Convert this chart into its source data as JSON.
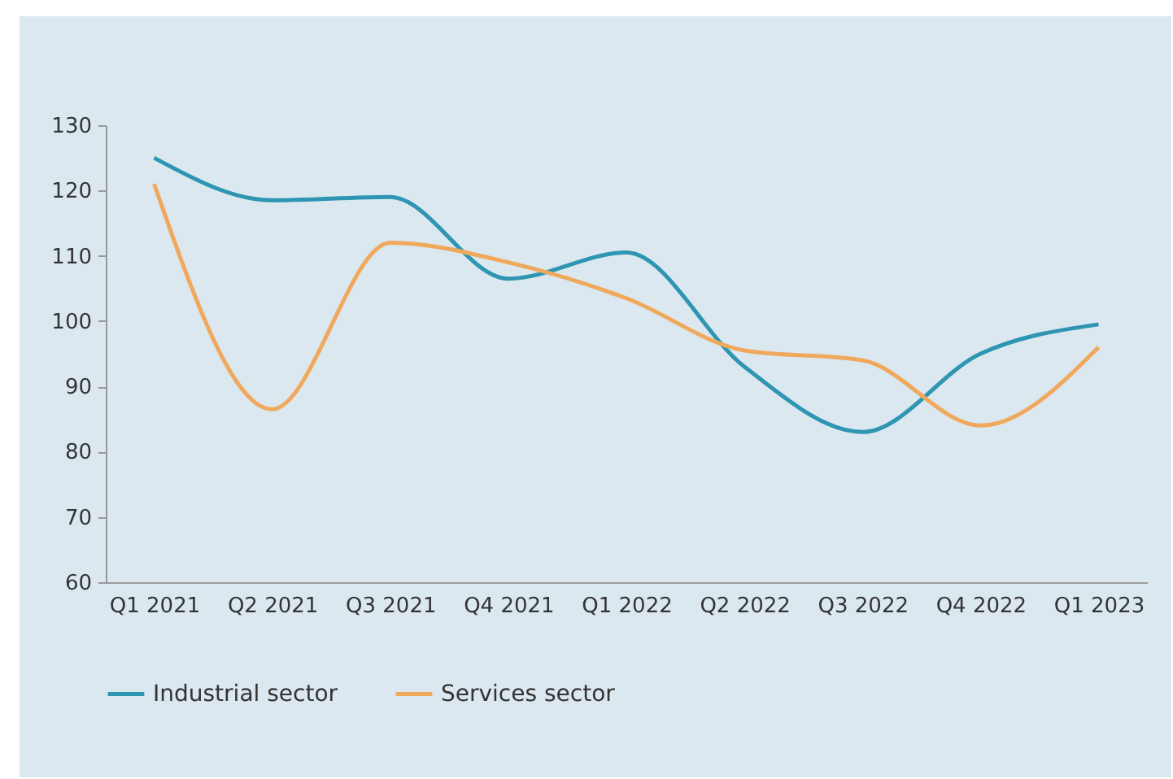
{
  "chart_data": {
    "type": "line",
    "categories": [
      "Q1 2021",
      "Q2 2021",
      "Q3 2021",
      "Q4 2021",
      "Q1 2022",
      "Q2 2022",
      "Q3 2022",
      "Q4 2022",
      "Q1 2023"
    ],
    "series": [
      {
        "name": "Industrial sector",
        "color": "#2e95b3",
        "values": [
          125,
          118.5,
          119,
          106.5,
          110.5,
          93,
          83,
          95,
          99.5
        ]
      },
      {
        "name": "Services sector",
        "color": "#f0a95c",
        "values": [
          121,
          86.5,
          112,
          109,
          103.5,
          95.5,
          94,
          84,
          96
        ]
      }
    ],
    "ylim": [
      60,
      130
    ],
    "yticks": [
      60,
      70,
      80,
      90,
      100,
      110,
      120,
      130
    ],
    "grid": false,
    "legend": "bottom",
    "marker": "none",
    "line_style": "solid"
  }
}
